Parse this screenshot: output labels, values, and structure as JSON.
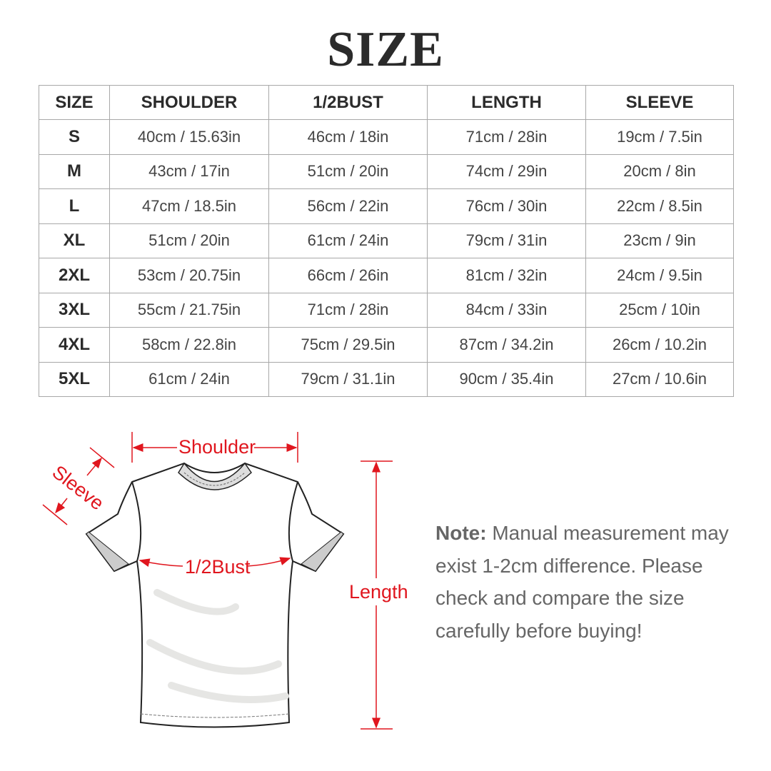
{
  "title": "SIZE",
  "table": {
    "headers": [
      "SIZE",
      "SHOULDER",
      "1/2BUST",
      "LENGTH",
      "SLEEVE"
    ],
    "rows": [
      [
        "S",
        "40cm / 15.63in",
        "46cm / 18in",
        "71cm / 28in",
        "19cm / 7.5in"
      ],
      [
        "M",
        "43cm / 17in",
        "51cm / 20in",
        "74cm / 29in",
        "20cm / 8in"
      ],
      [
        "L",
        "47cm / 18.5in",
        "56cm / 22in",
        "76cm / 30in",
        "22cm / 8.5in"
      ],
      [
        "XL",
        "51cm / 20in",
        "61cm / 24in",
        "79cm / 31in",
        "23cm / 9in"
      ],
      [
        "2XL",
        "53cm / 20.75in",
        "66cm / 26in",
        "81cm / 32in",
        "24cm / 9.5in"
      ],
      [
        "3XL",
        "55cm / 21.75in",
        "71cm / 28in",
        "84cm / 33in",
        "25cm / 10in"
      ],
      [
        "4XL",
        "58cm / 22.8in",
        "75cm / 29.5in",
        "87cm / 34.2in",
        "26cm / 10.2in"
      ],
      [
        "5XL",
        "61cm / 24in",
        "79cm / 31.1in",
        "90cm / 35.4in",
        "27cm / 10.6in"
      ]
    ]
  },
  "diagram": {
    "labels": {
      "shoulder": "Shoulder",
      "sleeve": "Sleeve",
      "bust": "1/2Bust",
      "length": "Length"
    },
    "annotation_color": "#e0161e"
  },
  "note": {
    "label": "Note:",
    "text": " Manual measurement may exist 1-2cm difference. Please check and compare the size carefully before buying!"
  }
}
